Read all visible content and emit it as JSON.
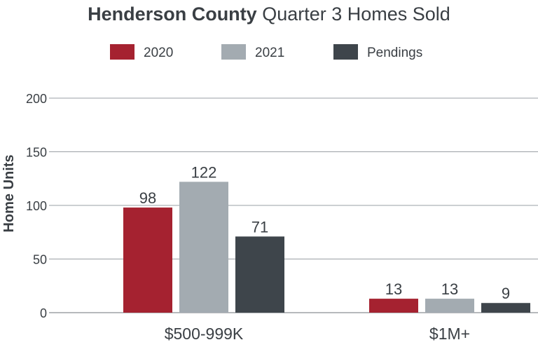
{
  "chart_data": {
    "type": "bar",
    "title_bold": "Henderson County",
    "title_rest": "Quarter 3 Homes Sold",
    "ylabel": "Home Units",
    "xlabel": "",
    "ylim": [
      0,
      200
    ],
    "yticks": [
      0,
      50,
      100,
      150,
      200
    ],
    "categories": [
      "$500-999K",
      "$1M+"
    ],
    "series": [
      {
        "name": "2020",
        "color": "#a52230",
        "values": [
          98,
          13
        ]
      },
      {
        "name": "2021",
        "color": "#a3abb1",
        "values": [
          122,
          13
        ]
      },
      {
        "name": "Pendings",
        "color": "#3e454b",
        "values": [
          71,
          9
        ]
      }
    ],
    "legend_position": "top-center",
    "grid": true
  }
}
